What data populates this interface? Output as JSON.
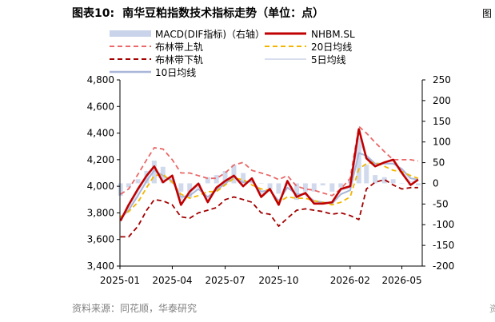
{
  "figure": {
    "number": "图表10:",
    "title": "南华豆粕指数技术指标走势（单位：点）",
    "source": "资料来源：同花顺，华泰研究"
  },
  "edge_marks": [
    "图",
    "资"
  ],
  "colors": {
    "macd": "#c9d3ea",
    "price": "#c00000",
    "boll_upper": "#ea6868",
    "boll_lower": "#a30000",
    "ma20": "#f2b600",
    "ma5": "#d9deef",
    "ma10": "#a9b6d9"
  },
  "chart_data": {
    "type": "line",
    "title": "南华豆粕指数技术指标走势（单位：点）",
    "x": [
      "2025-01-02",
      "2025-01-16",
      "2025-02-01",
      "2025-02-16",
      "2025-03-01",
      "2025-03-16",
      "2025-04-01",
      "2025-04-16",
      "2025-05-01",
      "2025-05-16",
      "2025-06-01",
      "2025-06-16",
      "2025-07-01",
      "2025-07-16",
      "2025-08-01",
      "2025-08-16",
      "2025-09-01",
      "2025-09-16",
      "2025-10-01",
      "2025-10-16",
      "2025-11-01",
      "2025-11-16",
      "2025-12-01",
      "2025-12-16",
      "2026-01-01",
      "2026-01-16",
      "2026-02-01",
      "2026-02-16",
      "2026-03-01",
      "2026-03-16",
      "2026-04-01",
      "2026-04-16",
      "2026-05-01",
      "2026-05-16",
      "2026-05-29"
    ],
    "x_ticks": [
      "2025-01",
      "2025-04",
      "2025-07",
      "2025-10",
      "2026-02",
      "2026-05"
    ],
    "xlim": [
      "2025-01-01",
      "2026-06-05"
    ],
    "y_left": {
      "ylim": [
        3400,
        4800
      ],
      "ticks": [
        "3,400",
        "3,600",
        "3,800",
        "4,000",
        "4,200",
        "4,400",
        "4,600",
        "4,800"
      ]
    },
    "y_right": {
      "ylim": [
        -200,
        250
      ],
      "ticks": [
        "-200",
        "-150",
        "-100",
        "-50",
        "0",
        "50",
        "100",
        "150",
        "200",
        "250"
      ],
      "label": "MACD (右轴)"
    },
    "legend": "top",
    "grid": false,
    "series": [
      {
        "name": "MACD(DIF指标)（右轴）",
        "axis": "right",
        "style": "bar",
        "values": [
          -30,
          -10,
          10,
          30,
          55,
          40,
          10,
          -20,
          -35,
          -10,
          15,
          20,
          30,
          45,
          25,
          5,
          0,
          -15,
          -25,
          -5,
          -40,
          -20,
          -20,
          -5,
          -20,
          -10,
          10,
          110,
          45,
          20,
          15,
          10,
          0,
          -5,
          -5
        ]
      },
      {
        "name": "NHBM.SL",
        "axis": "left",
        "style": "line",
        "values": [
          3740,
          3860,
          3980,
          4080,
          4150,
          4030,
          4080,
          3860,
          3960,
          4020,
          3880,
          3990,
          4040,
          4080,
          4000,
          4060,
          3920,
          3980,
          3860,
          4040,
          3920,
          3950,
          3870,
          3870,
          3880,
          3980,
          4000,
          4430,
          4210,
          4150,
          4180,
          4200,
          4100,
          4010,
          4050
        ]
      },
      {
        "name": "布林带上轨",
        "axis": "left",
        "style": "dashed",
        "values": [
          3940,
          3980,
          4090,
          4200,
          4290,
          4280,
          4200,
          4100,
          4100,
          4080,
          4060,
          4060,
          4100,
          4160,
          4180,
          4120,
          4100,
          4080,
          4050,
          4080,
          4000,
          3980,
          3970,
          3950,
          3930,
          3980,
          4060,
          4450,
          4400,
          4330,
          4260,
          4200,
          4200,
          4200,
          4190
        ]
      },
      {
        "name": "布林带下轨",
        "axis": "left",
        "style": "dashed",
        "values": [
          3620,
          3620,
          3700,
          3820,
          3900,
          3890,
          3860,
          3770,
          3760,
          3800,
          3820,
          3840,
          3900,
          3920,
          3900,
          3880,
          3800,
          3790,
          3700,
          3760,
          3820,
          3830,
          3820,
          3810,
          3790,
          3800,
          3780,
          3750,
          3980,
          4030,
          4050,
          4010,
          3980,
          3990,
          3990
        ]
      },
      {
        "name": "20日均线",
        "axis": "left",
        "style": "dashed",
        "values": [
          3770,
          3810,
          3880,
          3990,
          4080,
          4090,
          4030,
          3940,
          3910,
          3930,
          3960,
          3960,
          4010,
          4060,
          4050,
          4010,
          3980,
          3970,
          3880,
          3920,
          3910,
          3910,
          3890,
          3880,
          3860,
          3880,
          3920,
          4130,
          4170,
          4180,
          4150,
          4120,
          4110,
          4080,
          4060
        ]
      },
      {
        "name": "5日均线",
        "axis": "left",
        "style": "line",
        "values": [
          3750,
          3840,
          3960,
          4070,
          4140,
          4050,
          4060,
          3900,
          3950,
          4000,
          3900,
          3980,
          4030,
          4080,
          4010,
          4050,
          3940,
          3980,
          3880,
          4020,
          3930,
          3950,
          3880,
          3870,
          3880,
          3970,
          3990,
          4340,
          4230,
          4160,
          4180,
          4190,
          4120,
          4030,
          4050
        ]
      },
      {
        "name": "10日均线",
        "axis": "left",
        "style": "line",
        "values": [
          3760,
          3820,
          3930,
          4040,
          4120,
          4080,
          4040,
          3920,
          3930,
          3980,
          3920,
          3970,
          4020,
          4070,
          4030,
          4040,
          3960,
          3970,
          3890,
          3990,
          3940,
          3940,
          3890,
          3880,
          3870,
          3940,
          3970,
          4250,
          4230,
          4170,
          4170,
          4170,
          4130,
          4060,
          4050
        ]
      }
    ]
  }
}
